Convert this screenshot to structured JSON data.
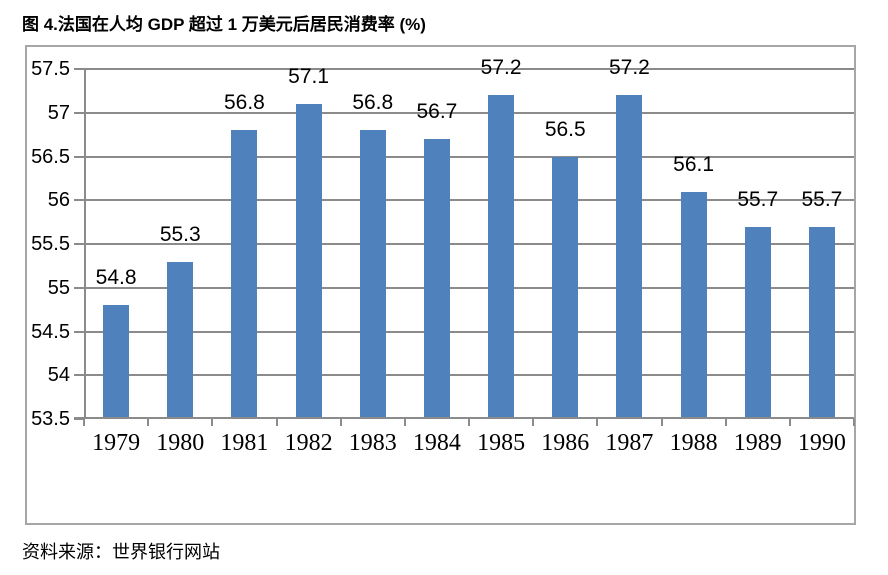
{
  "title": "图 4.法国在人均 GDP 超过 1 万美元后居民消费率 (%)",
  "source": "资料来源：世界银行网站",
  "chart_data": {
    "type": "bar",
    "title": "图 4.法国在人均 GDP 超过 1 万美元后居民消费率 (%)",
    "categories": [
      "1979",
      "1980",
      "1981",
      "1982",
      "1983",
      "1984",
      "1985",
      "1986",
      "1987",
      "1988",
      "1989",
      "1990"
    ],
    "values": [
      54.8,
      55.3,
      56.8,
      57.1,
      56.8,
      56.7,
      57.2,
      56.5,
      57.2,
      56.1,
      55.7,
      55.7
    ],
    "xlabel": "",
    "ylabel": "",
    "ylim": [
      53.5,
      57.5
    ],
    "ytick_step": 0.5,
    "grid": true,
    "legend": false,
    "data_labels": true,
    "colors": {
      "bar": "#4F81BD",
      "gridline": "#8B8B8B",
      "axis": "#8B8B8B",
      "frame_border": "#A6A6A6",
      "text": "#000000"
    }
  }
}
